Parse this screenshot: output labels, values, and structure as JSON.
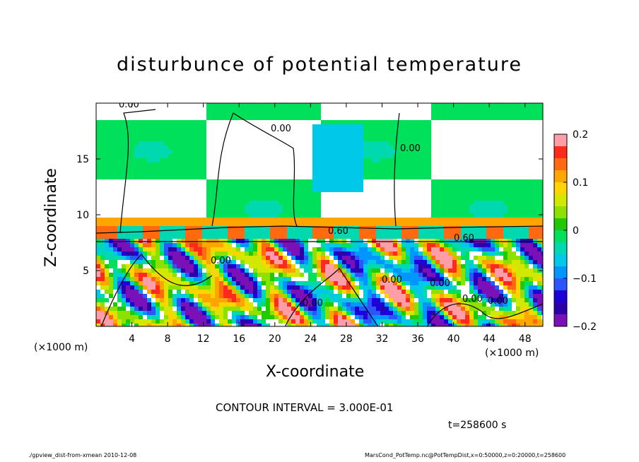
{
  "chart_data": {
    "type": "heatmap",
    "title": "disturbunce of potential temperature",
    "xlabel": "X-coordinate",
    "ylabel": "Z-coordinate",
    "xunit": "(×1000 m)",
    "xlim": [
      0,
      50
    ],
    "ylim": [
      0,
      20
    ],
    "x_ticks": [
      4,
      8,
      12,
      16,
      20,
      24,
      28,
      32,
      36,
      40,
      44,
      48
    ],
    "y_ticks": [
      5,
      10,
      15
    ],
    "colorbar": {
      "range": [
        -0.2,
        0.2
      ],
      "ticks": [
        0.2,
        0.1,
        0,
        -0.1,
        -0.2
      ],
      "tick_labels": [
        "0.2",
        "0.1",
        "0",
        "−0.1",
        "−0.2"
      ],
      "colors": [
        "#ff9ea8",
        "#ff2a1e",
        "#ff6a10",
        "#ffa500",
        "#ffd400",
        "#d2e800",
        "#8ee000",
        "#21c900",
        "#00e05a",
        "#00d8b0",
        "#00c8e8",
        "#0096ff",
        "#2a55ff",
        "#1e00d8",
        "#2c00a8",
        "#7a10b8"
      ]
    },
    "contour_labels": [
      "0.00",
      "0.00",
      "0.00",
      "0.60",
      "0.60",
      "0.00",
      "0.00",
      "0.00",
      "0.00",
      "0.00",
      "0.00"
    ],
    "contour_interval": "CONTOUR INTERVAL = 3.000E-01",
    "time": "t=258600 s",
    "footer_left": "./gpview_dist-from-xmean  2010-12-08",
    "footer_right": "MarsCond_PotTemp.nc@PotTempDist,x=0:50000,z=0:20000,t=258600"
  }
}
